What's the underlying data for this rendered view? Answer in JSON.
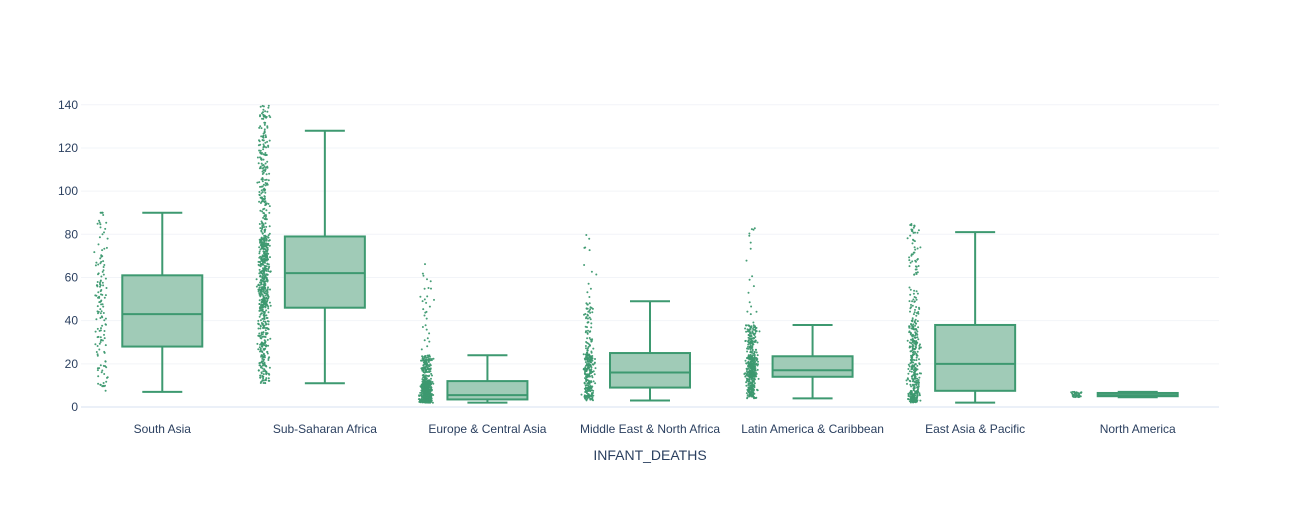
{
  "chart_data": {
    "type": "box",
    "title": "",
    "xlabel": "INFANT_DEATHS",
    "ylabel": "",
    "ylim": [
      0,
      145
    ],
    "y_ticks": [
      0,
      20,
      40,
      60,
      80,
      100,
      120,
      140
    ],
    "grid": true,
    "legend": "none",
    "color": "#3d9970",
    "box_fill": "#a0cbb7",
    "categories": [
      "South Asia",
      "Sub-Saharan Africa",
      "Europe & Central Asia",
      "Middle East & North Africa",
      "Latin America & Caribbean",
      "East Asia & Pacific",
      "North America"
    ],
    "boxes": [
      {
        "category": "South Asia",
        "min": 7,
        "q1": 28,
        "median": 43,
        "q3": 61,
        "max": 90,
        "point_min": 7,
        "point_max": 90,
        "n_points": 140
      },
      {
        "category": "Sub-Saharan Africa",
        "min": 11,
        "q1": 46,
        "median": 62,
        "q3": 79,
        "max": 128,
        "point_min": 11,
        "point_max": 140,
        "n_points": 800
      },
      {
        "category": "Europe & Central Asia",
        "min": 2,
        "q1": 3.5,
        "median": 5.5,
        "q3": 12,
        "max": 24,
        "point_min": 2,
        "point_max": 67,
        "n_points": 700
      },
      {
        "category": "Middle East & North Africa",
        "min": 3,
        "q1": 9,
        "median": 16,
        "q3": 25,
        "max": 49,
        "point_min": 3,
        "point_max": 80,
        "n_points": 320
      },
      {
        "category": "Latin America & Caribbean",
        "min": 4,
        "q1": 14,
        "median": 17,
        "q3": 23.5,
        "max": 38,
        "point_min": 4,
        "point_max": 85,
        "n_points": 500
      },
      {
        "category": "East Asia & Pacific",
        "min": 2,
        "q1": 7.5,
        "median": 20,
        "q3": 38,
        "max": 81,
        "point_min": 2,
        "point_max": 85,
        "n_points": 420
      },
      {
        "category": "North America",
        "min": 4.5,
        "q1": 5,
        "median": 5.5,
        "q3": 6.5,
        "max": 7,
        "point_min": 4.5,
        "point_max": 7,
        "n_points": 40
      }
    ]
  }
}
